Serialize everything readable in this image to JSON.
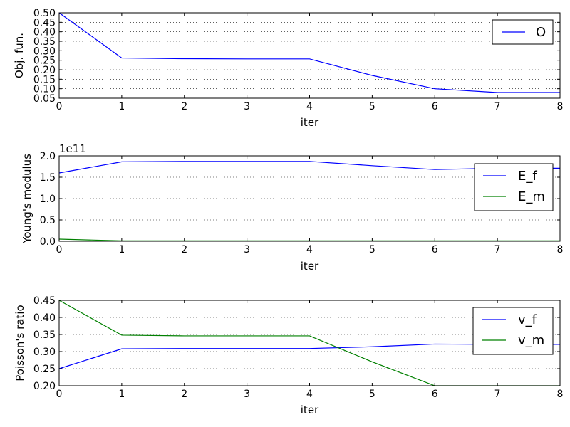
{
  "chart_data": [
    {
      "type": "line",
      "x": [
        0,
        1,
        2,
        3,
        4,
        5,
        6,
        7,
        8
      ],
      "series": [
        {
          "name": "O",
          "color": "#0000ff",
          "values": [
            0.5,
            0.262,
            0.258,
            0.257,
            0.257,
            0.17,
            0.1,
            0.08,
            0.08
          ]
        }
      ],
      "xlabel": "iter",
      "ylabel": "Obj. fun.",
      "xlim": [
        0,
        8
      ],
      "ylim": [
        0.05,
        0.5
      ],
      "xticks": [
        "0",
        "1",
        "2",
        "3",
        "4",
        "5",
        "6",
        "7",
        "8"
      ],
      "yticks": [
        0.05,
        0.1,
        0.15,
        0.2,
        0.25,
        0.3,
        0.35,
        0.4,
        0.45,
        0.5
      ],
      "ytick_labels": [
        "0.05",
        "0.10",
        "0.15",
        "0.20",
        "0.25",
        "0.30",
        "0.35",
        "0.40",
        "0.45",
        "0.50"
      ],
      "y_offset_text": "",
      "grid": "y-dotted",
      "legend": "upper-right"
    },
    {
      "type": "line",
      "x": [
        0,
        1,
        2,
        3,
        4,
        5,
        6,
        7,
        8
      ],
      "series": [
        {
          "name": "E_f",
          "color": "#0000ff",
          "values": [
            1.6,
            1.86,
            1.87,
            1.87,
            1.87,
            1.77,
            1.68,
            1.71,
            1.71
          ]
        },
        {
          "name": "E_m",
          "color": "#008000",
          "values": [
            0.05,
            0.01,
            0.01,
            0.01,
            0.01,
            0.01,
            0.01,
            0.01,
            0.01
          ]
        }
      ],
      "xlabel": "iter",
      "ylabel": "Young's modulus",
      "xlim": [
        0,
        8
      ],
      "ylim": [
        0.0,
        2.0
      ],
      "xticks": [
        "0",
        "1",
        "2",
        "3",
        "4",
        "5",
        "6",
        "7",
        "8"
      ],
      "yticks": [
        0.0,
        0.5,
        1.0,
        1.5,
        2.0
      ],
      "ytick_labels": [
        "0.0",
        "0.5",
        "1.0",
        "1.5",
        "2.0"
      ],
      "y_offset_text": "1e11",
      "grid": "y-dotted",
      "legend": "right"
    },
    {
      "type": "line",
      "x": [
        0,
        1,
        2,
        3,
        4,
        5,
        6,
        7,
        8
      ],
      "series": [
        {
          "name": "v_f",
          "color": "#0000ff",
          "values": [
            0.25,
            0.308,
            0.309,
            0.309,
            0.309,
            0.314,
            0.322,
            0.321,
            0.321
          ]
        },
        {
          "name": "v_m",
          "color": "#008000",
          "values": [
            0.45,
            0.348,
            0.346,
            0.346,
            0.346,
            0.27,
            0.2,
            0.2,
            0.2
          ]
        }
      ],
      "xlabel": "iter",
      "ylabel": "Poisson's ratio",
      "xlim": [
        0,
        8
      ],
      "ylim": [
        0.2,
        0.45
      ],
      "xticks": [
        "0",
        "1",
        "2",
        "3",
        "4",
        "5",
        "6",
        "7",
        "8"
      ],
      "yticks": [
        0.2,
        0.25,
        0.3,
        0.35,
        0.4,
        0.45
      ],
      "ytick_labels": [
        "0.20",
        "0.25",
        "0.30",
        "0.35",
        "0.40",
        "0.45"
      ],
      "y_offset_text": "",
      "grid": "y-dotted",
      "legend": "upper-right"
    }
  ]
}
